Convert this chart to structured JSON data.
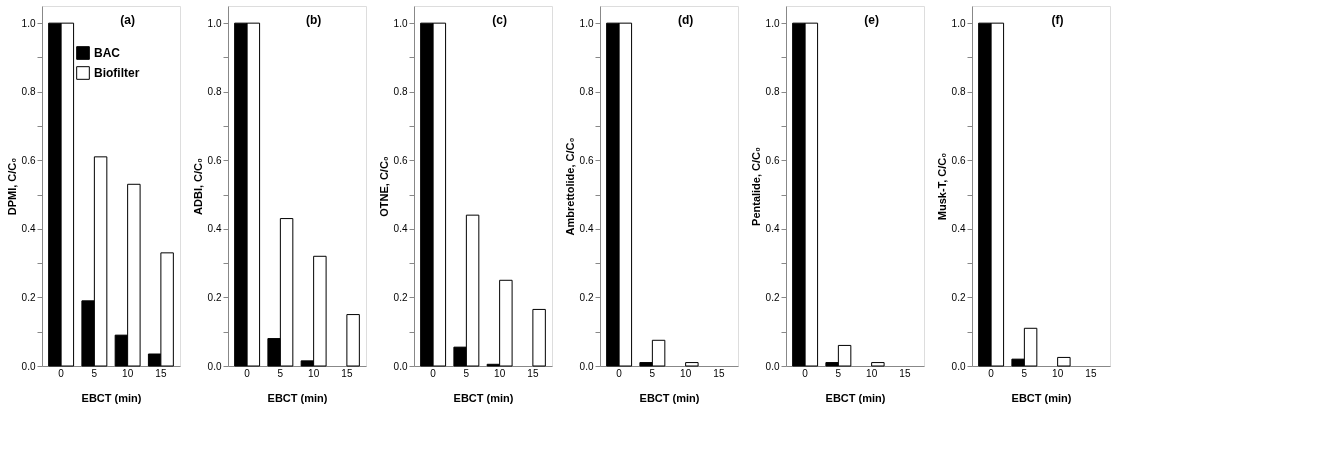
{
  "chart_data": [
    {
      "type": "bar",
      "categories": [
        "0",
        "5",
        "10",
        "15"
      ],
      "xlabel": "EBCT  (min)",
      "ylabel": "DPMI, C/C₀",
      "annotations": [
        "(a)"
      ],
      "legend": "top right",
      "grid": false,
      "ylim": [
        0,
        1.05
      ],
      "yticks": [
        {
          "value": 0,
          "label": "0.0"
        },
        {
          "value": 0.1,
          "label": null
        },
        {
          "value": 0.2,
          "label": "0.2"
        },
        {
          "value": 0.3,
          "label": null
        },
        {
          "value": 0.4,
          "label": "0.4"
        },
        {
          "value": 0.5,
          "label": null
        },
        {
          "value": 0.6,
          "label": "0.6"
        },
        {
          "value": 0.7,
          "label": null
        },
        {
          "value": 0.8,
          "label": "0.8"
        },
        {
          "value": 0.9,
          "label": null
        },
        {
          "value": 1,
          "label": "1.0"
        }
      ],
      "series": [
        {
          "name": "BAC",
          "color": "#000000",
          "values": [
            1,
            0.19,
            0.09,
            0.035
          ]
        },
        {
          "name": "Biofilter",
          "color": "#ffffff",
          "values": [
            1,
            0.61,
            0.53,
            0.33
          ]
        }
      ]
    },
    {
      "type": "bar",
      "categories": [
        "0",
        "5",
        "10",
        "15"
      ],
      "xlabel": "EBCT  (min)",
      "ylabel": "ADBI, C/C₀",
      "annotations": [
        "(b)"
      ],
      "grid": false,
      "ylim": [
        0,
        1.05
      ],
      "yticks": [
        {
          "value": 0,
          "label": "0.0"
        },
        {
          "value": 0.1,
          "label": null
        },
        {
          "value": 0.2,
          "label": "0.2"
        },
        {
          "value": 0.3,
          "label": null
        },
        {
          "value": 0.4,
          "label": "0.4"
        },
        {
          "value": 0.5,
          "label": null
        },
        {
          "value": 0.6,
          "label": "0.6"
        },
        {
          "value": 0.7,
          "label": null
        },
        {
          "value": 0.8,
          "label": "0.8"
        },
        {
          "value": 0.9,
          "label": null
        },
        {
          "value": 1,
          "label": "1.0"
        }
      ],
      "series": [
        {
          "color": "#000000",
          "values": [
            1,
            0.08,
            0.015,
            0
          ]
        },
        {
          "color": "#ffffff",
          "values": [
            1,
            0.43,
            0.32,
            0.15
          ]
        }
      ]
    },
    {
      "type": "bar",
      "categories": [
        "0",
        "5",
        "10",
        "15"
      ],
      "xlabel": "EBCT  (min)",
      "ylabel": "OTNE, C/C₀",
      "annotations": [
        "(c)"
      ],
      "grid": false,
      "ylim": [
        0,
        1.05
      ],
      "yticks": [
        {
          "value": 0,
          "label": "0.0"
        },
        {
          "value": 0.1,
          "label": null
        },
        {
          "value": 0.2,
          "label": "0.2"
        },
        {
          "value": 0.3,
          "label": null
        },
        {
          "value": 0.4,
          "label": "0.4"
        },
        {
          "value": 0.5,
          "label": null
        },
        {
          "value": 0.6,
          "label": "0.6"
        },
        {
          "value": 0.7,
          "label": null
        },
        {
          "value": 0.8,
          "label": "0.8"
        },
        {
          "value": 0.9,
          "label": null
        },
        {
          "value": 1,
          "label": "1.0"
        }
      ],
      "series": [
        {
          "color": "#000000",
          "values": [
            1,
            0.055,
            0.005,
            0
          ]
        },
        {
          "color": "#ffffff",
          "values": [
            1,
            0.44,
            0.25,
            0.165
          ]
        }
      ]
    },
    {
      "type": "bar",
      "categories": [
        "0",
        "5",
        "10",
        "15"
      ],
      "xlabel": "EBCT  (min)",
      "ylabel": "Ambrettolide, C/C₀",
      "annotations": [
        "(d)"
      ],
      "grid": false,
      "ylim": [
        0,
        1.05
      ],
      "yticks": [
        {
          "value": 0,
          "label": "0.0"
        },
        {
          "value": 0.1,
          "label": null
        },
        {
          "value": 0.2,
          "label": "0.2"
        },
        {
          "value": 0.3,
          "label": null
        },
        {
          "value": 0.4,
          "label": "0.4"
        },
        {
          "value": 0.5,
          "label": null
        },
        {
          "value": 0.6,
          "label": "0.6"
        },
        {
          "value": 0.7,
          "label": null
        },
        {
          "value": 0.8,
          "label": "0.8"
        },
        {
          "value": 0.9,
          "label": null
        },
        {
          "value": 1,
          "label": "1.0"
        }
      ],
      "series": [
        {
          "color": "#000000",
          "values": [
            1,
            0.01,
            0,
            0
          ]
        },
        {
          "color": "#ffffff",
          "values": [
            1,
            0.075,
            0.01,
            0
          ]
        }
      ]
    },
    {
      "type": "bar",
      "categories": [
        "0",
        "5",
        "10",
        "15"
      ],
      "xlabel": "EBCT  (min)",
      "ylabel": "Pentalide, C/C₀",
      "annotations": [
        "(e)"
      ],
      "grid": false,
      "ylim": [
        0,
        1.05
      ],
      "yticks": [
        {
          "value": 0,
          "label": "0.0"
        },
        {
          "value": 0.1,
          "label": null
        },
        {
          "value": 0.2,
          "label": "0.2"
        },
        {
          "value": 0.3,
          "label": null
        },
        {
          "value": 0.4,
          "label": "0.4"
        },
        {
          "value": 0.5,
          "label": null
        },
        {
          "value": 0.6,
          "label": "0.6"
        },
        {
          "value": 0.7,
          "label": null
        },
        {
          "value": 0.8,
          "label": "0.8"
        },
        {
          "value": 0.9,
          "label": null
        },
        {
          "value": 1,
          "label": "1.0"
        }
      ],
      "series": [
        {
          "color": "#000000",
          "values": [
            1,
            0.01,
            0,
            0
          ]
        },
        {
          "color": "#ffffff",
          "values": [
            1,
            0.06,
            0.01,
            0
          ]
        }
      ]
    },
    {
      "type": "bar",
      "categories": [
        "0",
        "5",
        "10",
        "15"
      ],
      "xlabel": "EBCT  (min)",
      "ylabel": "Musk-T, C/C₀",
      "annotations": [
        "(f)"
      ],
      "grid": false,
      "ylim": [
        0,
        1.05
      ],
      "yticks": [
        {
          "value": 0,
          "label": "0.0"
        },
        {
          "value": 0.1,
          "label": null
        },
        {
          "value": 0.2,
          "label": "0.2"
        },
        {
          "value": 0.3,
          "label": null
        },
        {
          "value": 0.4,
          "label": "0.4"
        },
        {
          "value": 0.5,
          "label": null
        },
        {
          "value": 0.6,
          "label": "0.6"
        },
        {
          "value": 0.7,
          "label": null
        },
        {
          "value": 0.8,
          "label": "0.8"
        },
        {
          "value": 0.9,
          "label": null
        },
        {
          "value": 1,
          "label": "1.0"
        }
      ],
      "series": [
        {
          "color": "#000000",
          "values": [
            1,
            0.02,
            0,
            0
          ]
        },
        {
          "color": "#ffffff",
          "values": [
            1,
            0.11,
            0.025,
            0
          ]
        }
      ]
    }
  ]
}
